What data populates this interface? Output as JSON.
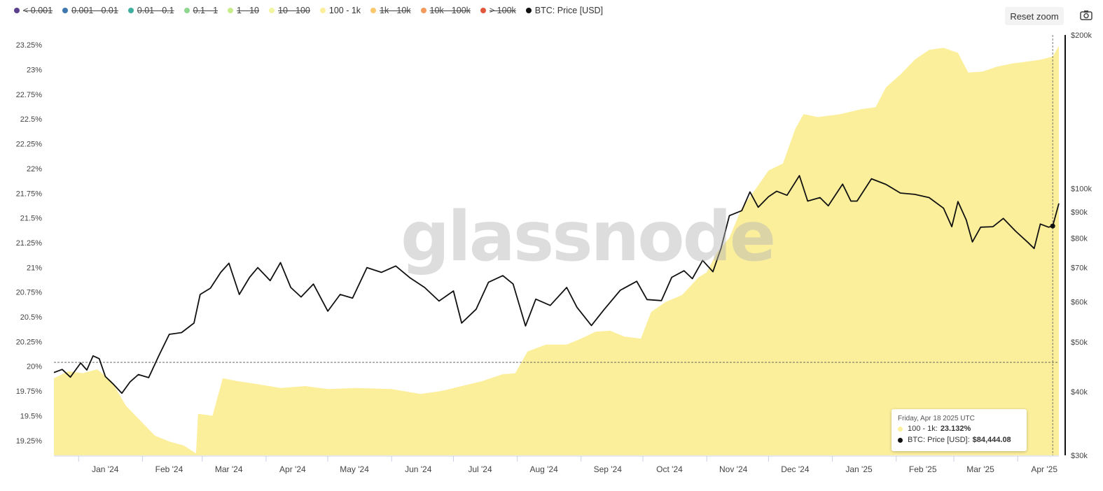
{
  "legend": [
    {
      "label": "< 0.001",
      "color": "#5b3f8c",
      "hidden": true
    },
    {
      "label": "0.001 - 0.01",
      "color": "#3f78b0",
      "hidden": true
    },
    {
      "label": "0.01 - 0.1",
      "color": "#3fb0a0",
      "hidden": true
    },
    {
      "label": "0.1 - 1",
      "color": "#8fd68f",
      "hidden": true
    },
    {
      "label": "1 - 10",
      "color": "#c8ec8c",
      "hidden": true
    },
    {
      "label": "10 - 100",
      "color": "#f2f5a0",
      "hidden": true
    },
    {
      "label": "100 - 1k",
      "color": "#fcef9c",
      "hidden": false
    },
    {
      "label": "1k - 10k",
      "color": "#fbc86c",
      "hidden": true
    },
    {
      "label": "10k - 100k",
      "color": "#f59a5a",
      "hidden": true
    },
    {
      "label": "> 100k",
      "color": "#e2573c",
      "hidden": true
    },
    {
      "label": "BTC: Price [USD]",
      "color": "#111111",
      "hidden": false
    }
  ],
  "toolbar": {
    "reset_zoom": "Reset zoom",
    "camera_icon": "camera-icon"
  },
  "watermark": "glassnode",
  "tooltip": {
    "date": "Friday, Apr 18 2025 UTC",
    "series1_label": "100 - 1k:",
    "series1_value": "23.132%",
    "series2_label": "BTC: Price [USD]:",
    "series2_value": "$84,444.08"
  },
  "chart_data": {
    "type": "area",
    "x_start": "2023-12-20",
    "x_end": "2025-04-21",
    "x_ticks": [
      {
        "date": "2024-01-01",
        "label": "Jan '24"
      },
      {
        "date": "2024-02-01",
        "label": "Feb '24"
      },
      {
        "date": "2024-03-01",
        "label": "Mar '24"
      },
      {
        "date": "2024-04-01",
        "label": "Apr '24"
      },
      {
        "date": "2024-05-01",
        "label": "May '24"
      },
      {
        "date": "2024-06-01",
        "label": "Jun '24"
      },
      {
        "date": "2024-07-01",
        "label": "Jul '24"
      },
      {
        "date": "2024-08-01",
        "label": "Aug '24"
      },
      {
        "date": "2024-09-01",
        "label": "Sep '24"
      },
      {
        "date": "2024-10-01",
        "label": "Oct '24"
      },
      {
        "date": "2024-11-01",
        "label": "Nov '24"
      },
      {
        "date": "2024-12-01",
        "label": "Dec '24"
      },
      {
        "date": "2025-01-01",
        "label": "Jan '25"
      },
      {
        "date": "2025-02-01",
        "label": "Feb '25"
      },
      {
        "date": "2025-03-01",
        "label": "Mar '25"
      },
      {
        "date": "2025-04-01",
        "label": "Apr '25"
      }
    ],
    "y_left": {
      "min": 19.1,
      "max": 23.35,
      "ticks": [
        19.25,
        19.5,
        19.75,
        20,
        20.25,
        20.5,
        20.75,
        21,
        21.25,
        21.5,
        21.75,
        22,
        22.25,
        22.5,
        22.75,
        23,
        23.25
      ],
      "tick_labels": [
        "19.25%",
        "19.5%",
        "19.75%",
        "20%",
        "20.25%",
        "20.5%",
        "20.75%",
        "21%",
        "21.25%",
        "21.5%",
        "21.75%",
        "22%",
        "22.25%",
        "22.5%",
        "22.75%",
        "23%",
        "23.25%"
      ]
    },
    "y_right": {
      "scale": "log",
      "min": 30000,
      "max": 200000,
      "ticks": [
        30000,
        40000,
        50000,
        60000,
        70000,
        80000,
        90000,
        100000,
        200000
      ],
      "tick_labels": [
        "$30k",
        "$40k",
        "$50k",
        "$60k",
        "$70k",
        "$80k",
        "$90k",
        "$100k",
        "$200k"
      ]
    },
    "crosshair": {
      "date": "2025-04-18",
      "y_left": 20.04
    },
    "series": [
      {
        "name": "100 - 1k",
        "axis": "left",
        "color": "#fcef9c",
        "points": [
          [
            "2023-12-20",
            19.88
          ],
          [
            "2023-12-27",
            19.95
          ],
          [
            "2024-01-03",
            19.93
          ],
          [
            "2024-01-10",
            19.97
          ],
          [
            "2024-01-17",
            19.85
          ],
          [
            "2024-01-24",
            19.6
          ],
          [
            "2024-01-31",
            19.45
          ],
          [
            "2024-02-07",
            19.3
          ],
          [
            "2024-02-14",
            19.24
          ],
          [
            "2024-02-21",
            19.2
          ],
          [
            "2024-02-27",
            19.12
          ],
          [
            "2024-02-28",
            19.52
          ],
          [
            "2024-03-06",
            19.5
          ],
          [
            "2024-03-11",
            19.88
          ],
          [
            "2024-03-18",
            19.85
          ],
          [
            "2024-03-28",
            19.82
          ],
          [
            "2024-04-08",
            19.78
          ],
          [
            "2024-04-20",
            19.8
          ],
          [
            "2024-05-01",
            19.77
          ],
          [
            "2024-05-15",
            19.78
          ],
          [
            "2024-06-01",
            19.77
          ],
          [
            "2024-06-15",
            19.72
          ],
          [
            "2024-06-25",
            19.75
          ],
          [
            "2024-07-05",
            19.8
          ],
          [
            "2024-07-15",
            19.85
          ],
          [
            "2024-07-25",
            19.92
          ],
          [
            "2024-07-31",
            19.93
          ],
          [
            "2024-08-06",
            20.15
          ],
          [
            "2024-08-15",
            20.22
          ],
          [
            "2024-08-25",
            20.22
          ],
          [
            "2024-09-01",
            20.28
          ],
          [
            "2024-09-08",
            20.35
          ],
          [
            "2024-09-15",
            20.36
          ],
          [
            "2024-09-22",
            20.3
          ],
          [
            "2024-09-30",
            20.28
          ],
          [
            "2024-10-05",
            20.55
          ],
          [
            "2024-10-12",
            20.65
          ],
          [
            "2024-10-20",
            20.72
          ],
          [
            "2024-10-28",
            20.9
          ],
          [
            "2024-11-01",
            20.95
          ],
          [
            "2024-11-06",
            21.15
          ],
          [
            "2024-11-12",
            21.3
          ],
          [
            "2024-11-18",
            21.6
          ],
          [
            "2024-11-25",
            21.8
          ],
          [
            "2024-12-01",
            21.98
          ],
          [
            "2024-12-08",
            22.05
          ],
          [
            "2024-12-14",
            22.4
          ],
          [
            "2024-12-18",
            22.55
          ],
          [
            "2024-12-25",
            22.52
          ],
          [
            "2025-01-05",
            22.55
          ],
          [
            "2025-01-15",
            22.6
          ],
          [
            "2025-01-22",
            22.62
          ],
          [
            "2025-01-27",
            22.82
          ],
          [
            "2025-02-03",
            22.95
          ],
          [
            "2025-02-10",
            23.1
          ],
          [
            "2025-02-17",
            23.2
          ],
          [
            "2025-02-24",
            23.22
          ],
          [
            "2025-03-03",
            23.17
          ],
          [
            "2025-03-08",
            22.97
          ],
          [
            "2025-03-15",
            22.98
          ],
          [
            "2025-03-22",
            23.03
          ],
          [
            "2025-03-29",
            23.06
          ],
          [
            "2025-04-05",
            23.08
          ],
          [
            "2025-04-12",
            23.1
          ],
          [
            "2025-04-18",
            23.132
          ],
          [
            "2025-04-21",
            23.24
          ]
        ]
      },
      {
        "name": "BTC: Price [USD]",
        "axis": "right",
        "color": "#111111",
        "points": [
          [
            "2023-12-20",
            43600
          ],
          [
            "2023-12-24",
            44200
          ],
          [
            "2023-12-28",
            42700
          ],
          [
            "2024-01-02",
            45500
          ],
          [
            "2024-01-05",
            44100
          ],
          [
            "2024-01-08",
            47000
          ],
          [
            "2024-01-11",
            46400
          ],
          [
            "2024-01-14",
            42800
          ],
          [
            "2024-01-18",
            41300
          ],
          [
            "2024-01-22",
            39700
          ],
          [
            "2024-01-26",
            41800
          ],
          [
            "2024-01-30",
            43200
          ],
          [
            "2024-02-04",
            42600
          ],
          [
            "2024-02-09",
            47100
          ],
          [
            "2024-02-14",
            51800
          ],
          [
            "2024-02-20",
            52200
          ],
          [
            "2024-02-26",
            54500
          ],
          [
            "2024-02-29",
            62000
          ],
          [
            "2024-03-05",
            63800
          ],
          [
            "2024-03-10",
            68500
          ],
          [
            "2024-03-14",
            71400
          ],
          [
            "2024-03-19",
            62000
          ],
          [
            "2024-03-24",
            67000
          ],
          [
            "2024-03-28",
            70000
          ],
          [
            "2024-04-03",
            66000
          ],
          [
            "2024-04-08",
            71600
          ],
          [
            "2024-04-13",
            64000
          ],
          [
            "2024-04-18",
            61300
          ],
          [
            "2024-04-24",
            65000
          ],
          [
            "2024-05-01",
            57500
          ],
          [
            "2024-05-07",
            62000
          ],
          [
            "2024-05-13",
            61000
          ],
          [
            "2024-05-20",
            70000
          ],
          [
            "2024-05-27",
            68500
          ],
          [
            "2024-06-03",
            70500
          ],
          [
            "2024-06-10",
            66800
          ],
          [
            "2024-06-17",
            64000
          ],
          [
            "2024-06-24",
            60200
          ],
          [
            "2024-07-01",
            63000
          ],
          [
            "2024-07-05",
            54500
          ],
          [
            "2024-07-12",
            58000
          ],
          [
            "2024-07-18",
            65500
          ],
          [
            "2024-07-25",
            67500
          ],
          [
            "2024-07-30",
            65000
          ],
          [
            "2024-08-05",
            53800
          ],
          [
            "2024-08-10",
            60700
          ],
          [
            "2024-08-17",
            59000
          ],
          [
            "2024-08-25",
            64000
          ],
          [
            "2024-08-30",
            58500
          ],
          [
            "2024-09-06",
            53900
          ],
          [
            "2024-09-12",
            57800
          ],
          [
            "2024-09-20",
            63200
          ],
          [
            "2024-09-28",
            65800
          ],
          [
            "2024-10-03",
            60600
          ],
          [
            "2024-10-10",
            60300
          ],
          [
            "2024-10-15",
            67000
          ],
          [
            "2024-10-21",
            69000
          ],
          [
            "2024-10-25",
            66600
          ],
          [
            "2024-10-30",
            72300
          ],
          [
            "2024-11-04",
            68700
          ],
          [
            "2024-11-08",
            76500
          ],
          [
            "2024-11-12",
            88500
          ],
          [
            "2024-11-18",
            90500
          ],
          [
            "2024-11-22",
            98500
          ],
          [
            "2024-11-26",
            91900
          ],
          [
            "2024-12-01",
            96400
          ],
          [
            "2024-12-05",
            98800
          ],
          [
            "2024-12-10",
            97000
          ],
          [
            "2024-12-16",
            106000
          ],
          [
            "2024-12-20",
            94500
          ],
          [
            "2024-12-26",
            96000
          ],
          [
            "2024-12-30",
            92500
          ],
          [
            "2025-01-06",
            102000
          ],
          [
            "2025-01-10",
            94500
          ],
          [
            "2025-01-13",
            94500
          ],
          [
            "2025-01-20",
            104500
          ],
          [
            "2025-01-27",
            101900
          ],
          [
            "2025-02-03",
            98000
          ],
          [
            "2025-02-10",
            97400
          ],
          [
            "2025-02-17",
            96000
          ],
          [
            "2025-02-24",
            91500
          ],
          [
            "2025-02-28",
            84200
          ],
          [
            "2025-03-03",
            94300
          ],
          [
            "2025-03-07",
            86800
          ],
          [
            "2025-03-10",
            78600
          ],
          [
            "2025-03-14",
            84000
          ],
          [
            "2025-03-20",
            84200
          ],
          [
            "2025-03-25",
            87400
          ],
          [
            "2025-03-31",
            82500
          ],
          [
            "2025-04-06",
            78400
          ],
          [
            "2025-04-09",
            76300
          ],
          [
            "2025-04-12",
            85200
          ],
          [
            "2025-04-16",
            84000
          ],
          [
            "2025-04-18",
            84444
          ],
          [
            "2025-04-21",
            93500
          ]
        ]
      }
    ]
  }
}
